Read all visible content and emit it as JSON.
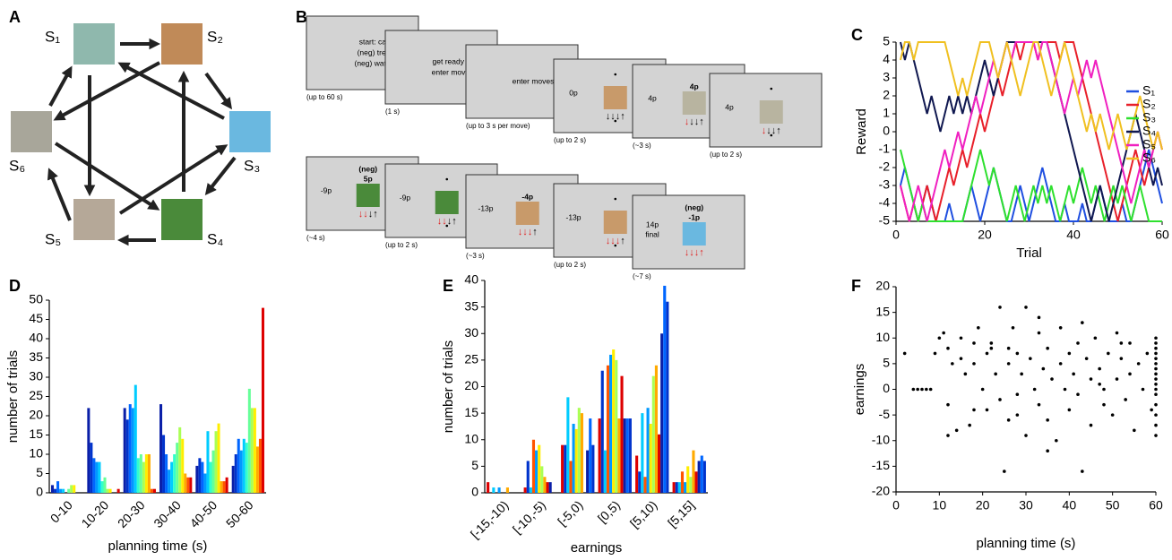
{
  "panel_labels": [
    "A",
    "B",
    "C",
    "D",
    "E",
    "F"
  ],
  "diagram": {
    "nodes": [
      "S₁",
      "S₂",
      "S₃",
      "S₄",
      "S₅",
      "S₆"
    ]
  },
  "task": {
    "screens": [
      {
        "center_lines": [
          "start: cat",
          "(neg) tree",
          "(neg) water"
        ],
        "caption": "(up to 60 s)"
      },
      {
        "center_lines": [
          "get ready to",
          "enter moves"
        ],
        "caption": "(1 s)"
      },
      {
        "center_lines": [
          "enter moves"
        ],
        "caption": "(up to 3 s per move)"
      },
      {
        "score": [
          "0p"
        ],
        "image_color": "#c89a6a",
        "arrows": {
          "black": "↓↓↓↑"
        },
        "caption": "(up to 2 s)"
      },
      {
        "score": [
          "4p"
        ],
        "outcome": [
          "4p"
        ],
        "image_color": "#b8b4a0",
        "arrows": {
          "red": "↓",
          "black": "↓↓↑"
        },
        "caption": "(~3 s)"
      },
      {
        "score": [
          "4p"
        ],
        "image_color": "#b8b4a0",
        "arrows": {
          "red": "↓",
          "black": "↓↓↑"
        },
        "caption": "(up to 2 s)"
      },
      {
        "score": [
          "-9p"
        ],
        "outcome": [
          "(neg)",
          "5p"
        ],
        "image_color": "#4a8a3a",
        "arrows": {
          "red": "↓↓",
          "black": "↓↑"
        },
        "caption": "(~4 s)"
      },
      {
        "score": [
          "-9p"
        ],
        "image_color": "#4a8a3a",
        "arrows": {
          "red": "↓↓",
          "black": "↓↑"
        },
        "caption": "(up to 2 s)"
      },
      {
        "score": [
          "-13p"
        ],
        "outcome": [
          "-4p"
        ],
        "image_color": "#c89a6a",
        "arrows": {
          "red": "↓↓↓",
          "black": "↑"
        },
        "caption": "(~3 s)"
      },
      {
        "score": [
          "-13p"
        ],
        "image_color": "#c89a6a",
        "arrows": {
          "red": "↓↓↓",
          "black": "↑"
        },
        "caption": "(up to 2 s)"
      },
      {
        "score": [
          "14p",
          "final"
        ],
        "outcome": [
          "(neg)",
          "-1p"
        ],
        "image_color": "#6ab8e0",
        "arrows": {
          "red": "↓↓↓↑"
        },
        "caption": "(~7 s)"
      }
    ]
  },
  "chart_data": [
    {
      "type": "line",
      "y_label": "Reward",
      "x_label": "Trial",
      "legend": "right",
      "x": [
        1,
        2,
        3,
        4,
        5,
        6,
        7,
        8,
        9,
        10,
        11,
        12,
        13,
        14,
        15,
        16,
        17,
        18,
        19,
        20,
        21,
        22,
        23,
        24,
        25,
        26,
        27,
        28,
        29,
        30,
        31,
        32,
        33,
        34,
        35,
        36,
        37,
        38,
        39,
        40,
        41,
        42,
        43,
        44,
        45,
        46,
        47,
        48,
        49,
        50,
        51,
        52,
        53,
        54,
        55,
        56,
        57,
        58,
        59,
        60
      ],
      "xlim": [
        0,
        60
      ],
      "xticks": [
        0,
        20,
        40,
        60
      ],
      "ylim": [
        -5,
        5
      ],
      "yticks": [
        -5,
        -4,
        -3,
        -2,
        -1,
        0,
        1,
        2,
        3,
        4,
        5
      ],
      "series": [
        {
          "name": "S₁",
          "color": "#1f4fe0",
          "values": [
            -3,
            -2,
            -3,
            -4,
            -5,
            -4,
            -3,
            -4,
            -5,
            -5,
            -5,
            -4,
            -5,
            -5,
            -5,
            -4,
            -3,
            -4,
            -5,
            -4,
            -3,
            -2,
            -3,
            -4,
            -5,
            -5,
            -4,
            -3,
            -4,
            -5,
            -4,
            -3,
            -2,
            -3,
            -4,
            -5,
            -5,
            -4,
            -5,
            -5,
            -5,
            -4,
            -5,
            -5,
            -4,
            -3,
            -4,
            -5,
            -5,
            -5,
            -4,
            -5,
            -5,
            -4,
            -3,
            -2,
            -1,
            -2,
            -3,
            -4
          ]
        },
        {
          "name": "S₂",
          "color": "#e8202a",
          "values": [
            -3,
            -4,
            -5,
            -4,
            -5,
            -4,
            -3,
            -4,
            -5,
            -4,
            -3,
            -2,
            -3,
            -2,
            -1,
            -2,
            -1,
            0,
            1,
            0,
            1,
            2,
            3,
            2,
            3,
            4,
            5,
            4,
            5,
            5,
            5,
            4,
            5,
            5,
            5,
            5,
            4,
            5,
            5,
            5,
            4,
            3,
            2,
            1,
            0,
            -1,
            -2,
            -3,
            -4,
            -5,
            -4,
            -3,
            -2,
            -1,
            -2,
            -3,
            -2,
            -1,
            0,
            -1
          ]
        },
        {
          "name": "S₃",
          "color": "#2ee02e",
          "values": [
            -1,
            -2,
            -3,
            -4,
            -5,
            -4,
            -5,
            -5,
            -5,
            -5,
            -5,
            -5,
            -5,
            -5,
            -5,
            -4,
            -3,
            -2,
            -1,
            -2,
            -3,
            -2,
            -3,
            -4,
            -5,
            -4,
            -3,
            -4,
            -5,
            -4,
            -3,
            -4,
            -3,
            -4,
            -3,
            -4,
            -5,
            -4,
            -3,
            -4,
            -3,
            -2,
            -3,
            -4,
            -3,
            -4,
            -5,
            -4,
            -3,
            -4,
            -3,
            -4,
            -5,
            -4,
            -3,
            -4,
            -5,
            -5,
            -5,
            -5
          ]
        },
        {
          "name": "S₄",
          "color": "#101850",
          "values": [
            5,
            4,
            5,
            4,
            3,
            2,
            1,
            2,
            1,
            0,
            1,
            2,
            1,
            2,
            1,
            2,
            1,
            2,
            3,
            4,
            3,
            2,
            3,
            4,
            5,
            5,
            5,
            5,
            5,
            5,
            5,
            5,
            5,
            5,
            4,
            3,
            2,
            1,
            0,
            -1,
            -2,
            -3,
            -4,
            -5,
            -4,
            -3,
            -4,
            -5,
            -4,
            -3,
            -2,
            -1,
            0,
            1,
            0,
            -1,
            -2,
            -3,
            -2,
            -3
          ]
        },
        {
          "name": "S₅",
          "color": "#f020c0",
          "values": [
            -3,
            -4,
            -5,
            -4,
            -3,
            -4,
            -5,
            -4,
            -3,
            -2,
            -1,
            -2,
            -1,
            0,
            -1,
            0,
            1,
            2,
            1,
            2,
            3,
            4,
            3,
            4,
            5,
            4,
            5,
            5,
            5,
            5,
            5,
            4,
            5,
            5,
            4,
            3,
            2,
            1,
            2,
            3,
            2,
            3,
            4,
            3,
            4,
            3,
            2,
            1,
            0,
            -1,
            -2,
            -3,
            -4,
            -3,
            -2,
            -1,
            -2,
            -1,
            0,
            -1
          ]
        },
        {
          "name": "S₆",
          "color": "#f0c020",
          "values": [
            4,
            5,
            5,
            4,
            5,
            5,
            5,
            5,
            5,
            5,
            5,
            4,
            3,
            2,
            3,
            2,
            3,
            4,
            5,
            5,
            5,
            4,
            3,
            4,
            5,
            4,
            3,
            2,
            3,
            4,
            5,
            5,
            4,
            3,
            2,
            3,
            4,
            5,
            4,
            3,
            2,
            1,
            0,
            1,
            0,
            1,
            0,
            -1,
            0,
            1,
            0,
            -1,
            0,
            1,
            2,
            1,
            0,
            -1,
            0,
            -1
          ]
        }
      ]
    },
    {
      "type": "bar",
      "y_label": "number of trials",
      "x_label": "planning time (s)",
      "categories": [
        "0-10",
        "10-20",
        "20-30",
        "30-40",
        "40-50",
        "50-60"
      ],
      "ylim": [
        0,
        50
      ],
      "yticks": [
        0,
        5,
        10,
        15,
        20,
        25,
        30,
        35,
        40,
        45,
        50
      ],
      "series": [
        {
          "color": "#0a1fa8",
          "values": [
            2,
            22,
            22,
            23,
            7,
            7
          ]
        },
        {
          "color": "#0033cc",
          "values": [
            1,
            13,
            19,
            15,
            9,
            10
          ]
        },
        {
          "color": "#0066ff",
          "values": [
            3,
            9,
            23,
            10,
            8,
            14
          ]
        },
        {
          "color": "#0099ff",
          "values": [
            1,
            8,
            22,
            6,
            5,
            11
          ]
        },
        {
          "color": "#00ccff",
          "values": [
            1,
            8,
            28,
            8,
            16,
            14
          ]
        },
        {
          "color": "#33ffcc",
          "values": [
            0,
            3,
            9,
            10,
            8,
            13
          ]
        },
        {
          "color": "#66ff99",
          "values": [
            1,
            4,
            10,
            13,
            11,
            27
          ]
        },
        {
          "color": "#aaff55",
          "values": [
            2,
            1,
            8,
            17,
            16,
            22
          ]
        },
        {
          "color": "#ffee00",
          "values": [
            2,
            1,
            10,
            14,
            18,
            22
          ]
        },
        {
          "color": "#ffaa00",
          "values": [
            0,
            0,
            10,
            5,
            3,
            12
          ]
        },
        {
          "color": "#ff5500",
          "values": [
            0,
            0,
            1,
            4,
            3,
            14
          ]
        },
        {
          "color": "#dd0000",
          "values": [
            0,
            1,
            1,
            4,
            4,
            48
          ]
        }
      ]
    },
    {
      "type": "bar",
      "y_label": "number of trials",
      "x_label": "earnings",
      "categories": [
        "[-15,-10)",
        "[-10,-5)",
        "[-5,0)",
        "[0,5)",
        "[5,10)",
        "[5,15]"
      ],
      "ylim": [
        0,
        40
      ],
      "yticks": [
        0,
        5,
        10,
        15,
        20,
        25,
        30,
        35,
        40
      ],
      "series": [
        {
          "color": "#dd0000",
          "values": [
            2,
            1,
            9,
            14,
            7,
            2
          ]
        },
        {
          "color": "#0033cc",
          "values": [
            0,
            6,
            9,
            23,
            4,
            2
          ]
        },
        {
          "color": "#00ccff",
          "values": [
            1,
            1,
            18,
            8,
            15,
            2
          ]
        },
        {
          "color": "#ff5500",
          "values": [
            0,
            10,
            6,
            24,
            3,
            4
          ]
        },
        {
          "color": "#0099ff",
          "values": [
            1,
            8,
            13,
            26,
            16,
            2
          ]
        },
        {
          "color": "#ffee00",
          "values": [
            0,
            9,
            12,
            27,
            13,
            5
          ]
        },
        {
          "color": "#aaff55",
          "values": [
            0,
            5,
            16,
            25,
            22,
            3
          ]
        },
        {
          "color": "#ffaa00",
          "values": [
            1,
            3,
            15,
            14,
            24,
            8
          ]
        },
        {
          "color": "#dd0000",
          "values": [
            0,
            2,
            0,
            22,
            11,
            4
          ]
        },
        {
          "color": "#0a1fa8",
          "values": [
            0,
            2,
            8,
            14,
            30,
            6
          ]
        },
        {
          "color": "#0066ff",
          "values": [
            0,
            0,
            14,
            14,
            39,
            7
          ]
        },
        {
          "color": "#0033cc",
          "values": [
            0,
            0,
            9,
            14,
            36,
            6
          ]
        }
      ]
    },
    {
      "type": "scatter",
      "y_label": "earnings",
      "x_label": "planning time (s)",
      "color": "#000000",
      "xlim": [
        0,
        60
      ],
      "xticks": [
        0,
        10,
        20,
        30,
        40,
        50,
        60
      ],
      "ylim": [
        -20,
        20
      ],
      "yticks": [
        -20,
        -15,
        -10,
        -5,
        0,
        5,
        10,
        15,
        20
      ],
      "x": [
        2,
        4,
        5,
        6,
        7,
        8,
        9,
        10,
        11,
        12,
        12,
        13,
        14,
        15,
        15,
        16,
        17,
        18,
        18,
        19,
        20,
        21,
        21,
        22,
        23,
        24,
        24,
        25,
        26,
        26,
        27,
        28,
        28,
        29,
        30,
        30,
        31,
        32,
        33,
        33,
        34,
        35,
        35,
        36,
        37,
        38,
        38,
        39,
        40,
        40,
        41,
        42,
        42,
        43,
        44,
        45,
        45,
        46,
        47,
        48,
        48,
        49,
        50,
        51,
        51,
        52,
        53,
        54,
        54,
        55,
        56,
        57,
        58,
        59,
        60,
        60,
        60,
        60,
        60,
        60,
        60,
        60,
        60,
        60,
        60,
        60,
        60,
        60,
        60,
        60,
        26,
        43,
        12,
        22,
        35,
        47,
        33,
        18,
        52,
        28
      ],
      "values": [
        7,
        0,
        0,
        0,
        0,
        0,
        7,
        10,
        11,
        -9,
        8,
        5,
        -8,
        6,
        10,
        3,
        -7,
        9,
        5,
        12,
        0,
        7,
        -4,
        9,
        3,
        -2,
        16,
        -16,
        8,
        5,
        12,
        -5,
        7,
        3,
        16,
        -9,
        6,
        0,
        -3,
        11,
        4,
        -6,
        8,
        2,
        -10,
        5,
        12,
        0,
        7,
        -4,
        3,
        9,
        -1,
        -16,
        6,
        2,
        -7,
        10,
        4,
        0,
        -3,
        7,
        -5,
        2,
        11,
        6,
        -2,
        9,
        3,
        -8,
        5,
        0,
        7,
        -4,
        -9,
        -7,
        -5,
        -3,
        -1,
        0,
        1,
        2,
        3,
        4,
        5,
        6,
        7,
        8,
        9,
        10,
        -6,
        13,
        -3,
        8,
        -12,
        1,
        14,
        -4,
        9,
        -1
      ]
    }
  ]
}
